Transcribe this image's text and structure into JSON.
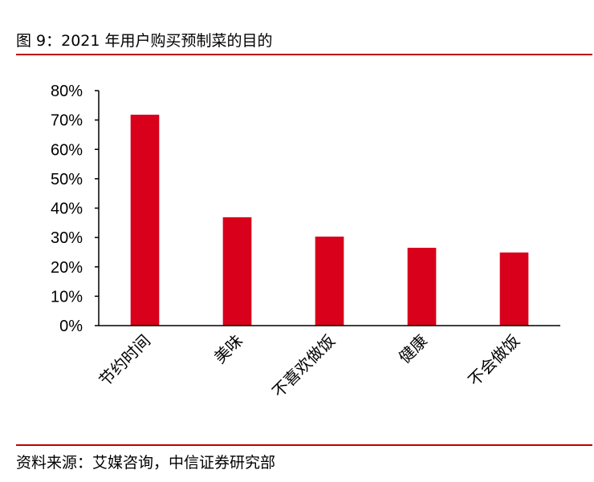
{
  "figure": {
    "title": "图 9：2021 年用户购买预制菜的目的",
    "source": "资料来源：艾媒咨询，中信证券研究部"
  },
  "colors": {
    "bar": "#d9001b",
    "rule": "#c00000",
    "axis": "#000000"
  },
  "chart_data": {
    "type": "bar",
    "categories": [
      "节约时间",
      "美味",
      "不喜欢做饭",
      "健康",
      "不会做饭"
    ],
    "values": [
      71.8,
      36.9,
      30.3,
      26.5,
      24.9
    ],
    "yticks": [
      "0%",
      "10%",
      "20%",
      "30%",
      "40%",
      "50%",
      "60%",
      "70%",
      "80%"
    ],
    "ylim": [
      0,
      80
    ],
    "grid": false,
    "legend": "none"
  }
}
